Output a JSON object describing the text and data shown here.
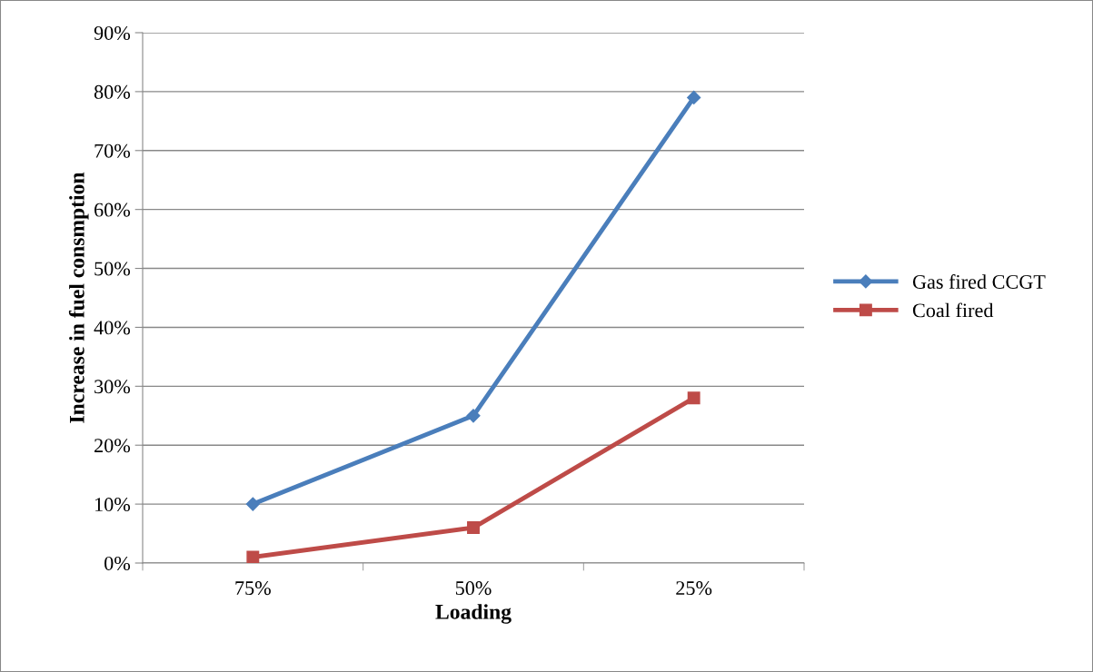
{
  "chart_data": {
    "type": "line",
    "xlabel": "Loading",
    "ylabel": "Increase in fuel consmption",
    "categories": [
      "75%",
      "50%",
      "25%"
    ],
    "series": [
      {
        "name": "Gas fired CCGT",
        "color": "#4a7ebb",
        "marker": "diamond",
        "values": [
          10,
          25,
          79
        ]
      },
      {
        "name": "Coal fired",
        "color": "#be4b48",
        "marker": "square",
        "values": [
          1,
          6,
          28
        ]
      }
    ],
    "ylim": [
      0,
      90
    ],
    "yticks": [
      {
        "value": 0,
        "label": "0%"
      },
      {
        "value": 10,
        "label": "10%"
      },
      {
        "value": 20,
        "label": "20%"
      },
      {
        "value": 30,
        "label": "30%"
      },
      {
        "value": 40,
        "label": "40%"
      },
      {
        "value": 50,
        "label": "50%"
      },
      {
        "value": 60,
        "label": "60%"
      },
      {
        "value": 70,
        "label": "70%"
      },
      {
        "value": 80,
        "label": "80%"
      },
      {
        "value": 90,
        "label": "90%"
      }
    ],
    "grid": "y",
    "legend": "right",
    "line_style": "solid"
  }
}
